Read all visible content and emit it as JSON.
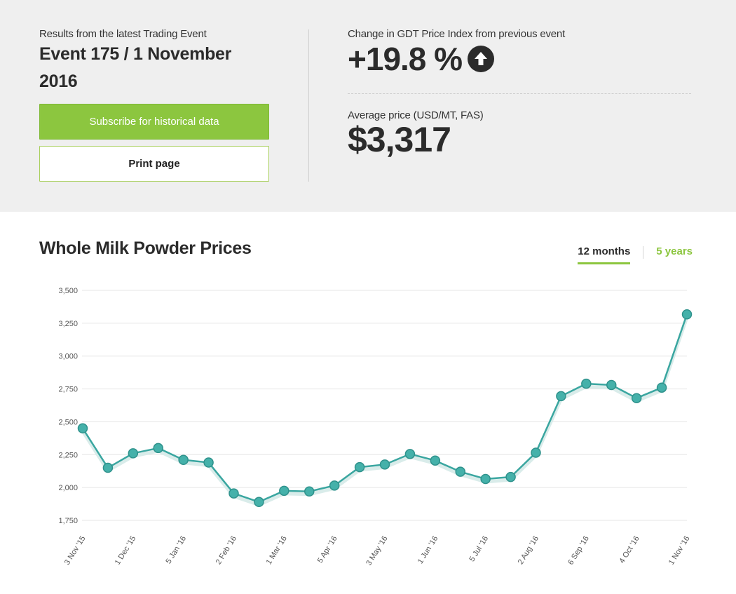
{
  "header": {
    "eyebrow": "Results from the latest Trading Event",
    "event_title_line1": "Event 175 / 1 November",
    "event_title_line2": "2016",
    "subscribe_label": "Subscribe for historical data",
    "print_label": "Print page",
    "change_label": "Change in GDT Price Index from previous event",
    "change_value": "+19.8 %",
    "change_icon": "arrow-up-circle-icon",
    "avg_label": "Average price (USD/MT, FAS)",
    "avg_value": "$3,317"
  },
  "chart_section": {
    "title": "Whole Milk Powder Prices",
    "tab_12_months": "12 months",
    "tab_5_years": "5 years"
  },
  "colors": {
    "accent_green": "#8cc63f",
    "line_teal": "#3aa6a0",
    "text_dark": "#2b2b2b"
  },
  "chart_data": {
    "type": "line",
    "title": "Whole Milk Powder Prices",
    "xlabel": "",
    "ylabel": "",
    "ylim": [
      1750,
      3500
    ],
    "yticks": [
      1750,
      2000,
      2250,
      2500,
      2750,
      3000,
      3250,
      3500
    ],
    "ytick_labels": [
      "1,750",
      "2,000",
      "2,250",
      "2,500",
      "2,750",
      "3,000",
      "3,250",
      "3,500"
    ],
    "x_tick_labels": [
      "3 Nov '15",
      "1 Dec '15",
      "5 Jan '16",
      "2 Feb '16",
      "1 Mar '16",
      "5 Apr '16",
      "3 May '16",
      "1 Jun '16",
      "5 Jul '16",
      "2 Aug '16",
      "6 Sep '16",
      "4 Oct '16",
      "1 Nov '16"
    ],
    "x_tick_every": 2,
    "grid": true,
    "series": [
      {
        "values": [
          2450,
          2150,
          2260,
          2300,
          2210,
          2190,
          1955,
          1890,
          1975,
          1970,
          2015,
          2155,
          2175,
          2255,
          2205,
          2120,
          2065,
          2080,
          2265,
          2695,
          2790,
          2780,
          2680,
          2760,
          3317
        ]
      }
    ]
  }
}
